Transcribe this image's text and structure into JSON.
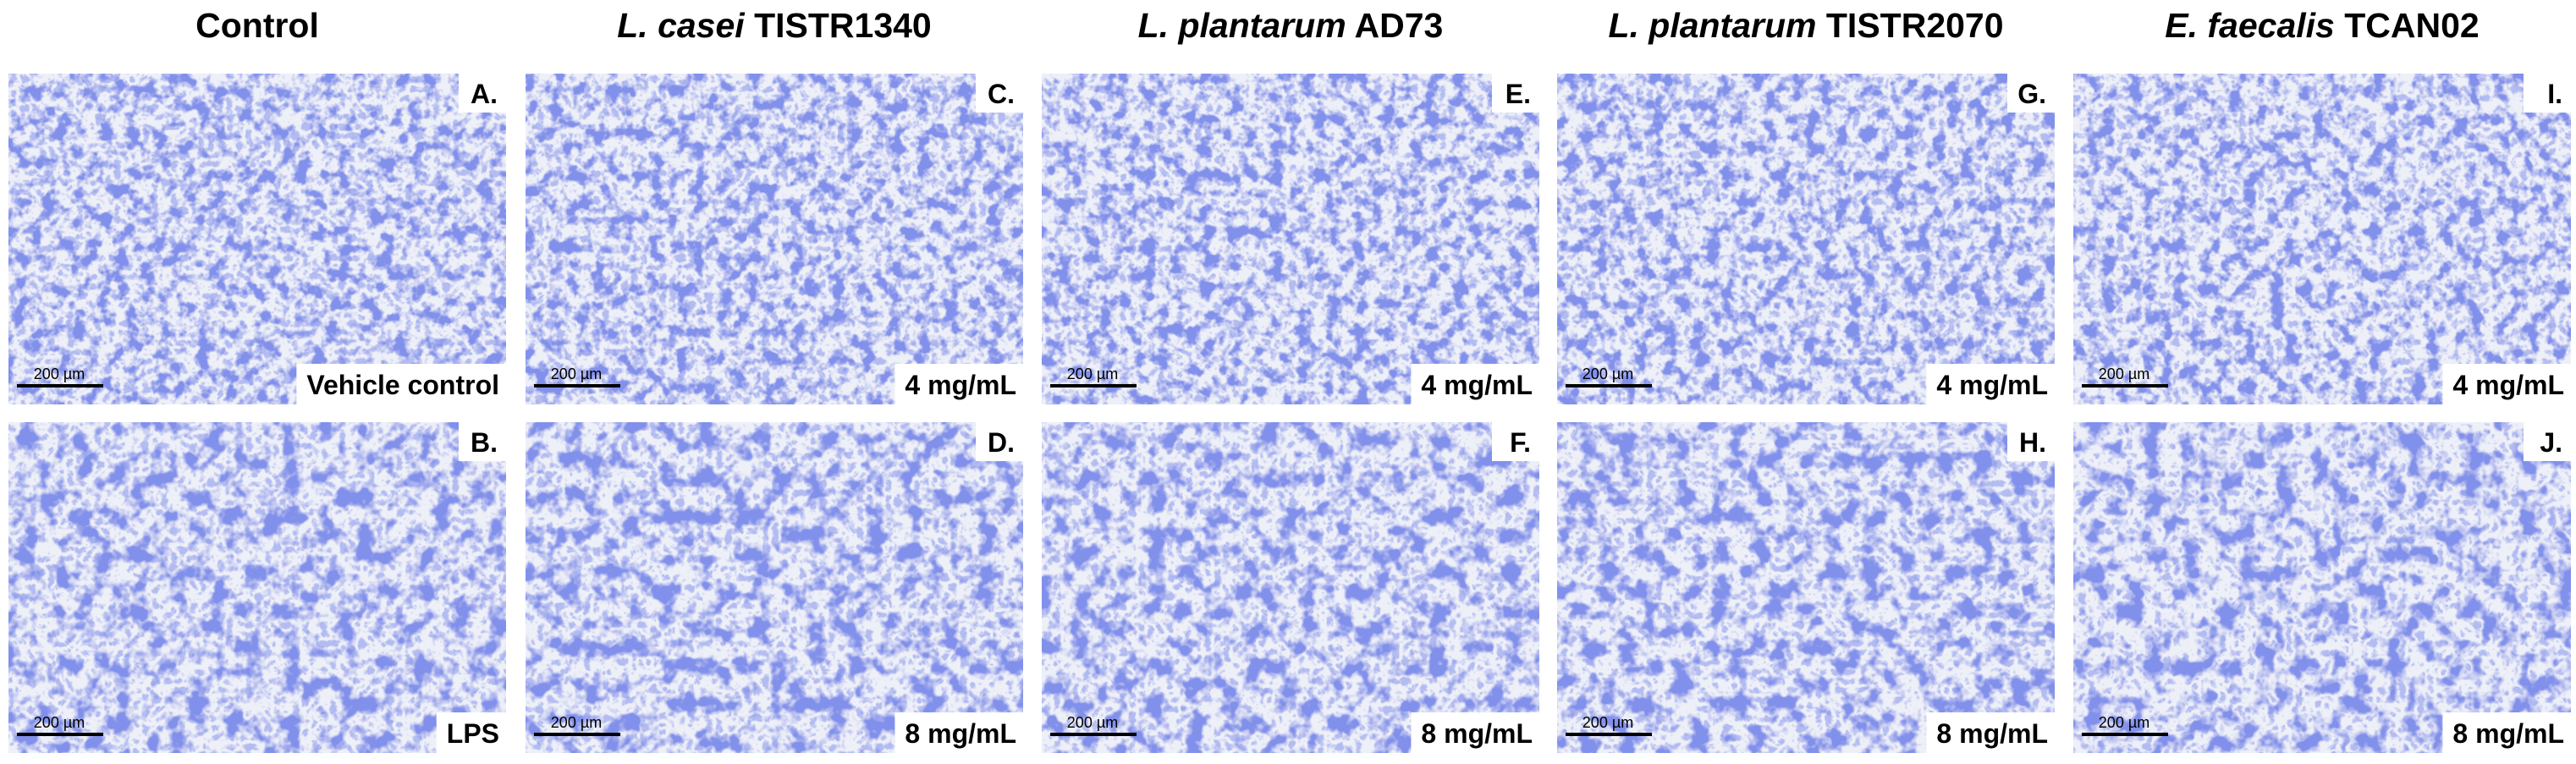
{
  "columns": [
    {
      "title": "Control",
      "panels": [
        {
          "letter": "A.",
          "label": "Vehicle control",
          "scale_bar": "200 µm"
        },
        {
          "letter": "B.",
          "label": "LPS",
          "scale_bar": "200 µm"
        }
      ]
    },
    {
      "species": "L. casei",
      "strain": "TISTR1340",
      "panels": [
        {
          "letter": "C.",
          "label": "4 mg/mL",
          "scale_bar": "200 µm"
        },
        {
          "letter": "D.",
          "label": "8 mg/mL",
          "scale_bar": "200 µm"
        }
      ]
    },
    {
      "species": "L. plantarum",
      "strain": "AD73",
      "panels": [
        {
          "letter": "E.",
          "label": "4 mg/mL",
          "scale_bar": "200 µm"
        },
        {
          "letter": "F.",
          "label": "8 mg/mL",
          "scale_bar": "200 µm"
        }
      ]
    },
    {
      "species": "L. plantarum",
      "strain": "TISTR2070",
      "panels": [
        {
          "letter": "G.",
          "label": "4 mg/mL",
          "scale_bar": "200 µm"
        },
        {
          "letter": "H.",
          "label": "8 mg/mL",
          "scale_bar": "200 µm"
        }
      ]
    },
    {
      "species": "E. faecalis",
      "strain": "TCAN02",
      "panels": [
        {
          "letter": "I.",
          "label": "4 mg/mL",
          "scale_bar": "200 µm"
        },
        {
          "letter": "J.",
          "label": "8 mg/mL",
          "scale_bar": "200 µm"
        }
      ]
    }
  ]
}
